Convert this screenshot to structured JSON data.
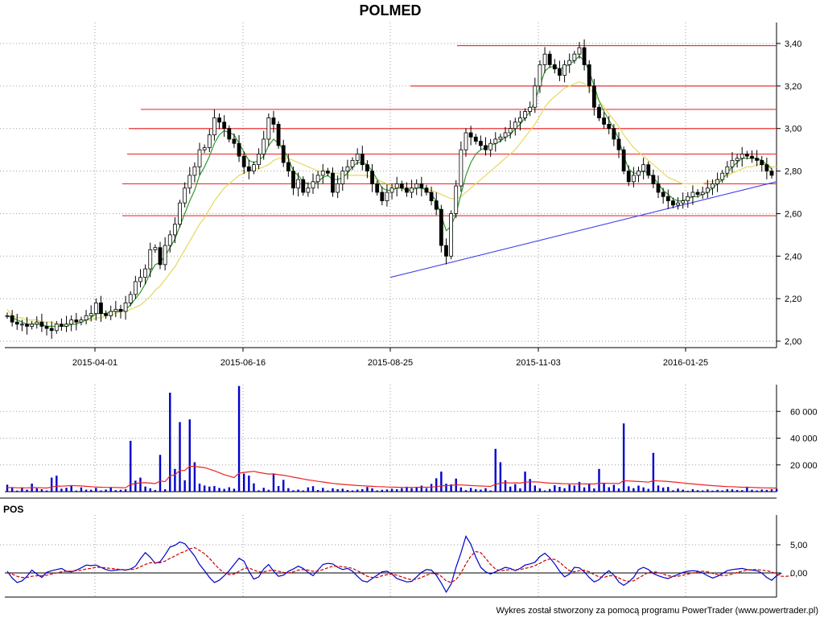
{
  "chart_data": [
    {
      "type": "candlestick",
      "title": "POLMED",
      "x_tick_labels": [
        "2015-04-01",
        "2015-06-16",
        "2015-08-25",
        "2015-11-03",
        "2016-01-25"
      ],
      "y_tick_labels": [
        "3,40",
        "3,20",
        "3,00",
        "2,80",
        "2,60",
        "2,40",
        "2,20",
        "2,00"
      ],
      "ylim": [
        2.0,
        3.4
      ],
      "grid": true,
      "resistance_levels": [
        3.39,
        3.2,
        3.09,
        3.0,
        2.88,
        2.74,
        2.59
      ],
      "trendline": {
        "from": [
          "2015-08-25",
          2.3
        ],
        "to": [
          "2016-03-07",
          2.75
        ]
      },
      "series": {
        "close": [
          2.12,
          2.09,
          2.08,
          2.08,
          2.07,
          2.08,
          2.09,
          2.07,
          2.06,
          2.05,
          2.08,
          2.07,
          2.08,
          2.1,
          2.09,
          2.1,
          2.12,
          2.13,
          2.18,
          2.13,
          2.12,
          2.14,
          2.15,
          2.14,
          2.18,
          2.22,
          2.28,
          2.3,
          2.34,
          2.43,
          2.44,
          2.36,
          2.45,
          2.5,
          2.55,
          2.65,
          2.72,
          2.78,
          2.82,
          2.9,
          2.91,
          2.97,
          3.05,
          3.03,
          3.0,
          2.95,
          2.93,
          2.87,
          2.82,
          2.8,
          2.83,
          2.88,
          2.95,
          3.05,
          3.02,
          2.92,
          2.84,
          2.8,
          2.72,
          2.76,
          2.7,
          2.72,
          2.75,
          2.78,
          2.8,
          2.79,
          2.7,
          2.74,
          2.8,
          2.82,
          2.85,
          2.88,
          2.83,
          2.8,
          2.74,
          2.7,
          2.66,
          2.7,
          2.72,
          2.74,
          2.72,
          2.7,
          2.72,
          2.74,
          2.72,
          2.7,
          2.66,
          2.62,
          2.45,
          2.4,
          2.6,
          2.73,
          2.9,
          2.98,
          2.96,
          2.94,
          2.92,
          2.9,
          2.93,
          2.95,
          2.96,
          2.98,
          3.0,
          3.03,
          3.05,
          3.08,
          3.1,
          3.2,
          3.3,
          3.35,
          3.3,
          3.28,
          3.25,
          3.3,
          3.32,
          3.35,
          3.38,
          3.3,
          3.2,
          3.1,
          3.05,
          3.02,
          3.0,
          2.95,
          2.9,
          2.8,
          2.75,
          2.78,
          2.8,
          2.83,
          2.78,
          2.74,
          2.7,
          2.68,
          2.66,
          2.64,
          2.65,
          2.66,
          2.68,
          2.7,
          2.69,
          2.7,
          2.72,
          2.74,
          2.76,
          2.79,
          2.82,
          2.85,
          2.86,
          2.88,
          2.87,
          2.86,
          2.85,
          2.83,
          2.8,
          2.78
        ],
        "ma_short": [
          2.12,
          2.11,
          2.1,
          2.09,
          2.08,
          2.08,
          2.08,
          2.08,
          2.07,
          2.07,
          2.07,
          2.07,
          2.07,
          2.08,
          2.08,
          2.09,
          2.1,
          2.11,
          2.13,
          2.13,
          2.13,
          2.14,
          2.14,
          2.14,
          2.15,
          2.17,
          2.2,
          2.23,
          2.27,
          2.32,
          2.36,
          2.37,
          2.4,
          2.44,
          2.48,
          2.54,
          2.6,
          2.66,
          2.71,
          2.78,
          2.82,
          2.87,
          2.93,
          2.97,
          2.99,
          2.98,
          2.97,
          2.93,
          2.89,
          2.85,
          2.84,
          2.85,
          2.87,
          2.92,
          2.95,
          2.93,
          2.9,
          2.86,
          2.8,
          2.78,
          2.75,
          2.74,
          2.74,
          2.75,
          2.77,
          2.78,
          2.76,
          2.76,
          2.77,
          2.79,
          2.82,
          2.84,
          2.84,
          2.83,
          2.8,
          2.76,
          2.72,
          2.71,
          2.71,
          2.72,
          2.72,
          2.71,
          2.71,
          2.72,
          2.72,
          2.71,
          2.69,
          2.66,
          2.59,
          2.52,
          2.54,
          2.6,
          2.69,
          2.78,
          2.84,
          2.88,
          2.9,
          2.91,
          2.92,
          2.93,
          2.94,
          2.96,
          2.97,
          3.0,
          3.02,
          3.05,
          3.08,
          3.13,
          3.2,
          3.27,
          3.29,
          3.29,
          3.28,
          3.29,
          3.3,
          3.32,
          3.34,
          3.32,
          3.27,
          3.2,
          3.13,
          3.08,
          3.04,
          3.0,
          2.95,
          2.87,
          2.81,
          2.79,
          2.79,
          2.8,
          2.79,
          2.77,
          2.74,
          2.71,
          2.69,
          2.67,
          2.66,
          2.66,
          2.67,
          2.68,
          2.68,
          2.69,
          2.7,
          2.72,
          2.74,
          2.76,
          2.79,
          2.82,
          2.84,
          2.86,
          2.86,
          2.86,
          2.86,
          2.85,
          2.83,
          2.81
        ],
        "ma_long": [
          2.15,
          2.12,
          2.11,
          2.11,
          2.1,
          2.1,
          2.1,
          2.09,
          2.09,
          2.09,
          2.08,
          2.08,
          2.08,
          2.09,
          2.09,
          2.09,
          2.1,
          2.1,
          2.11,
          2.11,
          2.12,
          2.12,
          2.13,
          2.14,
          2.14,
          2.15,
          2.16,
          2.17,
          2.19,
          2.21,
          2.24,
          2.26,
          2.29,
          2.32,
          2.35,
          2.39,
          2.43,
          2.47,
          2.51,
          2.55,
          2.58,
          2.62,
          2.66,
          2.69,
          2.72,
          2.74,
          2.76,
          2.78,
          2.79,
          2.8,
          2.81,
          2.81,
          2.82,
          2.83,
          2.85,
          2.86,
          2.86,
          2.86,
          2.85,
          2.84,
          2.83,
          2.82,
          2.81,
          2.8,
          2.8,
          2.8,
          2.79,
          2.79,
          2.78,
          2.78,
          2.78,
          2.78,
          2.78,
          2.78,
          2.77,
          2.76,
          2.75,
          2.74,
          2.73,
          2.73,
          2.73,
          2.72,
          2.72,
          2.72,
          2.72,
          2.71,
          2.71,
          2.7,
          2.69,
          2.68,
          2.67,
          2.67,
          2.68,
          2.7,
          2.72,
          2.74,
          2.76,
          2.78,
          2.8,
          2.82,
          2.84,
          2.86,
          2.88,
          2.9,
          2.93,
          2.96,
          2.99,
          3.02,
          3.06,
          3.1,
          3.13,
          3.15,
          3.17,
          3.19,
          3.2,
          3.21,
          3.22,
          3.21,
          3.19,
          3.16,
          3.13,
          3.1,
          3.07,
          3.04,
          3.01,
          2.97,
          2.94,
          2.91,
          2.89,
          2.87,
          2.85,
          2.83,
          2.81,
          2.79,
          2.77,
          2.76,
          2.75,
          2.74,
          2.74,
          2.74,
          2.74,
          2.74,
          2.75,
          2.75,
          2.76,
          2.77,
          2.78,
          2.79,
          2.8,
          2.81,
          2.82,
          2.82,
          2.83,
          2.83,
          2.83,
          2.82,
          2.82
        ]
      }
    },
    {
      "type": "bar",
      "y_tick_labels": [
        "60 000",
        "40 000",
        "20 000"
      ],
      "ylim": [
        0,
        80000
      ],
      "grid": true,
      "values": [
        5200,
        3000,
        800,
        3200,
        1500,
        6000,
        2500,
        1800,
        900,
        10500,
        12000,
        2200,
        2900,
        4400,
        800,
        3200,
        1500,
        1400,
        2800,
        900,
        1500,
        3200,
        1100,
        1400,
        1800,
        38000,
        8200,
        10500,
        3800,
        2500,
        1200,
        27500,
        1800,
        74000,
        17000,
        52000,
        8500,
        54000,
        22000,
        6000,
        4600,
        3800,
        4200,
        2800,
        2100,
        3300,
        2200,
        79000,
        13500,
        12000,
        6200,
        1000,
        2900,
        1400,
        13000,
        4200,
        8800,
        2600,
        1000,
        1500,
        900,
        3200,
        4100,
        1200,
        2800,
        900,
        2500,
        1800,
        2200,
        1200,
        900,
        1500,
        1900,
        3500,
        2500,
        900,
        1400,
        1600,
        2200,
        1800,
        2600,
        3700,
        2600,
        3600,
        4500,
        2600,
        5800,
        10000,
        15000,
        6000,
        5500,
        9800,
        3200,
        1100,
        2800,
        1800,
        1500,
        2600,
        900,
        32000,
        22000,
        8500,
        3800,
        5600,
        2500,
        15000,
        9500,
        4600,
        2400,
        900,
        2000,
        4800,
        3600,
        2600,
        5300,
        4600,
        7300,
        3200,
        6100,
        2400,
        17000,
        6200,
        3300,
        5100,
        2400,
        51000,
        4000,
        2600,
        4500,
        3200,
        2100,
        29000,
        4600,
        3100,
        3500,
        1000,
        2300,
        1500,
        700,
        1800,
        1100,
        900,
        1600,
        800,
        1300,
        900,
        1800,
        1700,
        1200,
        1100,
        3700,
        1400,
        900,
        1600,
        1300,
        1800,
        2100
      ],
      "moving_average": [
        3000,
        3100,
        2900,
        2900,
        2800,
        3000,
        3000,
        2900,
        2700,
        3400,
        4200,
        4100,
        4300,
        4600,
        4400,
        4300,
        4000,
        3700,
        3500,
        3300,
        3200,
        3200,
        3100,
        3000,
        2900,
        5400,
        6000,
        6600,
        6700,
        6400,
        6000,
        8000,
        7500,
        11800,
        12600,
        15800,
        15800,
        19000,
        18800,
        18400,
        18000,
        16800,
        15600,
        14200,
        12700,
        11600,
        10500,
        13800,
        14400,
        14800,
        15200,
        14400,
        13800,
        13200,
        13300,
        12700,
        12300,
        11600,
        10800,
        10200,
        9500,
        8800,
        8300,
        7700,
        7200,
        6700,
        6200,
        5800,
        5500,
        5200,
        4900,
        4600,
        4400,
        4200,
        4000,
        3800,
        3700,
        3500,
        3400,
        3300,
        3200,
        3200,
        3200,
        3200,
        3300,
        3300,
        3400,
        3700,
        4300,
        4500,
        4700,
        5100,
        5000,
        4800,
        4600,
        4400,
        4200,
        4100,
        3900,
        5500,
        6400,
        6700,
        6500,
        6600,
        6400,
        7100,
        7400,
        7300,
        7100,
        6700,
        6400,
        6300,
        6100,
        5900,
        5900,
        5800,
        5900,
        5800,
        5800,
        5700,
        6300,
        6300,
        6200,
        6200,
        6000,
        8200,
        8000,
        7800,
        7600,
        7400,
        7100,
        8200,
        8000,
        7800,
        7600,
        7200,
        6900,
        6500,
        6100,
        5800,
        5400,
        5100,
        4800,
        4500,
        4300,
        4000,
        3800,
        3700,
        3500,
        3300,
        3300,
        3200,
        3000,
        2900,
        2800,
        2700,
        2700
      ]
    },
    {
      "type": "line",
      "title": "POS",
      "y_tick_labels": [
        "5,00",
        "0,00"
      ],
      "ylim": [
        -4.5,
        9
      ],
      "grid": true,
      "series": [
        {
          "color": "#0000cc",
          "style": "solid",
          "values": [
            0.3,
            -0.9,
            -1.7,
            -1.4,
            -0.6,
            0.5,
            -0.2,
            -0.8,
            0.1,
            0.4,
            0.6,
            0.8,
            0.3,
            0.2,
            0.5,
            0.9,
            1.4,
            1.3,
            1.4,
            1.0,
            0.6,
            0.4,
            0.5,
            0.6,
            0.5,
            0.7,
            1.2,
            2.5,
            3.6,
            2.8,
            1.7,
            2.0,
            3.2,
            4.6,
            4.9,
            5.5,
            5.2,
            4.1,
            3.0,
            1.5,
            0.4,
            -0.8,
            -1.7,
            -1.3,
            -0.5,
            0.4,
            1.5,
            2.6,
            2.1,
            0.3,
            -1.1,
            -0.7,
            0.7,
            1.5,
            0.3,
            -0.6,
            -0.4,
            0.3,
            0.7,
            1.2,
            0.8,
            0.1,
            -0.5,
            0.5,
            1.5,
            1.7,
            1.6,
            1.0,
            0.6,
            0.8,
            0.3,
            -0.6,
            -1.4,
            -1.6,
            -1.0,
            -0.4,
            0.2,
            0.3,
            -0.2,
            -1.0,
            -1.3,
            -1.6,
            -1.5,
            -0.7,
            0.1,
            0.6,
            0.5,
            -0.4,
            -1.8,
            -3.4,
            -2.0,
            1.0,
            3.6,
            6.5,
            5.1,
            2.8,
            1.0,
            0.2,
            -0.2,
            0.2,
            0.6,
            1.0,
            0.8,
            0.4,
            0.8,
            1.4,
            1.6,
            1.9,
            2.9,
            3.5,
            2.7,
            1.6,
            0.3,
            -0.7,
            -0.2,
            1.0,
            0.9,
            0.2,
            -0.8,
            -1.6,
            -1.2,
            -0.3,
            0.4,
            -0.4,
            -1.6,
            -2.2,
            -1.6,
            -0.8,
            0.6,
            1.0,
            0.6,
            -0.1,
            -0.5,
            -0.8,
            -1.0,
            -0.6,
            -0.3,
            0.1,
            0.3,
            0.4,
            0.3,
            0.0,
            -0.5,
            -0.9,
            -0.6,
            -0.1,
            0.4,
            0.6,
            0.7,
            0.8,
            0.6,
            0.5,
            0.4,
            0.0,
            -0.8,
            -1.3,
            -0.5,
            0.0
          ]
        },
        {
          "color": "#cc0000",
          "style": "dashed",
          "values": [
            0.0,
            -0.2,
            -0.6,
            -0.8,
            -0.8,
            -0.6,
            -0.5,
            -0.5,
            -0.4,
            -0.2,
            0.0,
            0.2,
            0.3,
            0.3,
            0.4,
            0.5,
            0.7,
            0.8,
            1.0,
            1.0,
            0.9,
            0.8,
            0.7,
            0.6,
            0.6,
            0.6,
            0.7,
            1.1,
            1.5,
            1.8,
            1.8,
            1.8,
            2.1,
            2.6,
            3.0,
            3.5,
            3.8,
            4.3,
            4.5,
            4.0,
            3.4,
            2.6,
            1.6,
            0.7,
            0.0,
            -0.3,
            -0.2,
            0.3,
            0.8,
            0.9,
            0.5,
            0.2,
            0.2,
            0.4,
            0.5,
            0.3,
            0.1,
            0.0,
            0.2,
            0.5,
            0.6,
            0.5,
            0.3,
            0.3,
            0.6,
            0.9,
            1.2,
            1.2,
            1.1,
            1.0,
            0.8,
            0.4,
            -0.1,
            -0.6,
            -0.8,
            -0.8,
            -0.5,
            -0.3,
            -0.2,
            -0.4,
            -0.7,
            -1.0,
            -1.2,
            -1.1,
            -0.8,
            -0.4,
            -0.1,
            -0.1,
            -0.6,
            -1.4,
            -1.7,
            -1.2,
            0.0,
            1.6,
            3.0,
            3.8,
            3.6,
            2.6,
            1.5,
            0.7,
            0.4,
            0.5,
            0.6,
            0.6,
            0.6,
            0.8,
            1.0,
            1.3,
            1.7,
            2.2,
            2.5,
            2.4,
            1.9,
            1.1,
            0.4,
            0.2,
            0.4,
            0.5,
            0.2,
            -0.3,
            -0.7,
            -0.8,
            -0.5,
            -0.5,
            -0.9,
            -1.3,
            -1.5,
            -1.4,
            -0.9,
            -0.4,
            0.1,
            0.2,
            0.1,
            -0.2,
            -0.5,
            -0.6,
            -0.6,
            -0.4,
            -0.2,
            0.0,
            0.2,
            0.3,
            0.2,
            -0.1,
            -0.3,
            -0.5,
            -0.4,
            -0.2,
            0.1,
            0.3,
            0.5,
            0.6,
            0.6,
            0.5,
            0.4,
            0.2,
            -0.2,
            -0.6,
            -0.6,
            -0.5
          ]
        }
      ]
    }
  ],
  "footer": "Wykres został stworzony za pomocą programu PowerTrader (www.powertrader.pl)",
  "colors": {
    "candle_up": "#000000",
    "candle_down": "#000000",
    "ma_short": "#2e9b2e",
    "ma_long": "#e6d85c",
    "resistance": "#ee3333",
    "trendline": "#4040ee",
    "volume_bars": "#0000cc",
    "volume_ma": "#ee2222"
  }
}
